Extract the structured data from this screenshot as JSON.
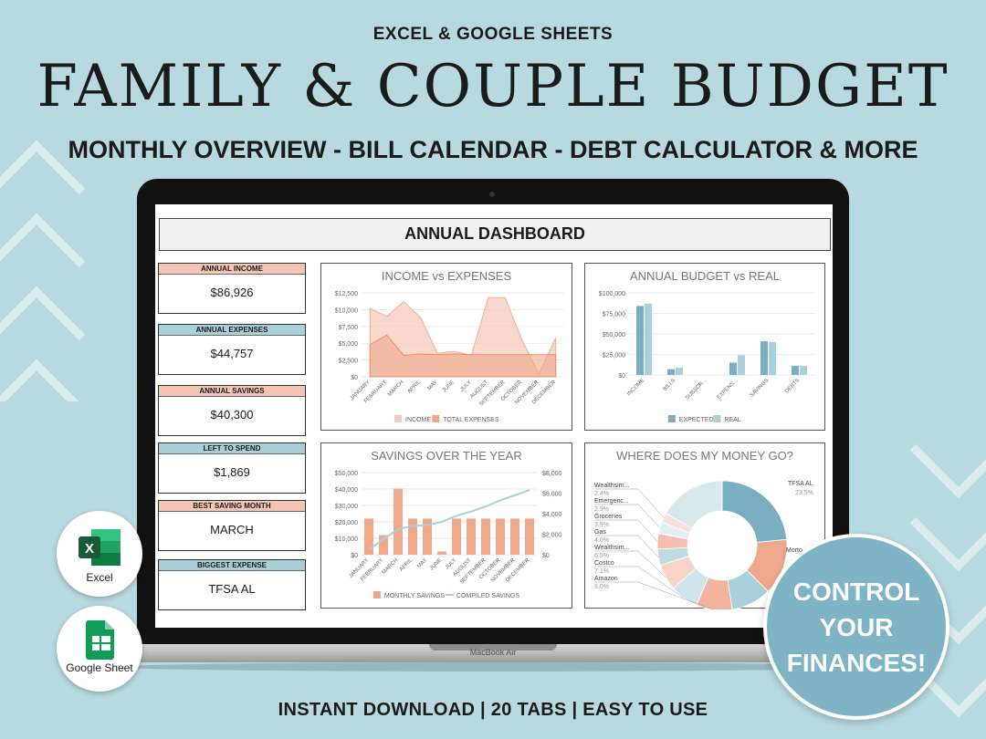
{
  "header": {
    "top_label": "EXCEL & GOOGLE SHEETS",
    "title": "FAMILY & COUPLE BUDGET",
    "subtitle": "MONTHLY OVERVIEW - BILL CALENDAR - DEBT CALCULATOR & MORE"
  },
  "footer": {
    "label": "INSTANT DOWNLOAD  |  20 TABS  |  EASY TO USE"
  },
  "laptop": {
    "brand": "MacBook Air"
  },
  "dashboard": {
    "title": "ANNUAL DASHBOARD",
    "cards": [
      {
        "label": "ANNUAL INCOME",
        "value": "$86,926",
        "color": "#f3c5b4"
      },
      {
        "label": "ANNUAL EXPENSES",
        "value": "$44,757",
        "color": "#a9cfd8"
      },
      {
        "label": "ANNUAL SAVINGS",
        "value": "$40,300",
        "color": "#f3c5b4"
      },
      {
        "label": "LEFT TO SPEND",
        "value": "$1,869",
        "color": "#a9cfd8"
      },
      {
        "label": "BEST SAVING MONTH",
        "value": "MARCH",
        "color": "#f3c5b4"
      },
      {
        "label": "BIGGEST EXPENSE",
        "value": "TFSA AL",
        "color": "#a9cfd8"
      }
    ]
  },
  "badges": {
    "excel": "Excel",
    "google": "Google Sheet"
  },
  "cta": {
    "line1": "CONTROL",
    "line2": "YOUR",
    "line3": "FINANCES!"
  },
  "colors": {
    "salmon": "#efa88c",
    "light_salmon": "#f6cbbb",
    "teal": "#79afbf",
    "light_teal": "#a8d1dc",
    "background": "#b7d9df"
  },
  "chart_data": [
    {
      "type": "area",
      "title": "INCOME vs EXPENSES",
      "categories": [
        "JANUARY",
        "FEBRUARY",
        "MARCH",
        "APRIL",
        "MAY",
        "JUNE",
        "JULY",
        "AUGUST",
        "SEPTEMBER",
        "OCTOBER",
        "NOVEMBER",
        "DECEMBER"
      ],
      "y_ticks": [
        "$0",
        "$2,500",
        "$5,000",
        "$7,500",
        "$10,000",
        "$12,500"
      ],
      "ylim": [
        0,
        12500
      ],
      "series": [
        {
          "name": "INCOME",
          "values": [
            10200,
            9000,
            11200,
            8800,
            3500,
            3800,
            3200,
            11800,
            11800,
            5500,
            500,
            5800
          ]
        },
        {
          "name": "TOTAL EXPENSES",
          "values": [
            4800,
            6200,
            3200,
            3400,
            3300,
            3400,
            3300,
            3300,
            3300,
            3300,
            3300,
            3300
          ]
        }
      ]
    },
    {
      "type": "bar",
      "title": "ANNUAL BUDGET vs REAL",
      "categories": [
        "INCOME",
        "BILLS",
        "SUBSCR...",
        "EXPENS...",
        "SAVINGS",
        "DEBTS"
      ],
      "y_ticks": [
        "$0",
        "$25,000",
        "$50,000",
        "$75,000",
        "$100,000"
      ],
      "ylim": [
        0,
        100000
      ],
      "series": [
        {
          "name": "EXPECTED",
          "values": [
            84000,
            7000,
            0,
            15000,
            41000,
            11000
          ]
        },
        {
          "name": "REAL",
          "values": [
            86926,
            9000,
            0,
            24000,
            40300,
            11000
          ]
        }
      ]
    },
    {
      "type": "bar",
      "title": "SAVINGS OVER THE YEAR",
      "categories": [
        "JANUARY",
        "FEBRUARY",
        "MARCH",
        "APRIL",
        "MAY",
        "JUNE",
        "JULY",
        "AUGUST",
        "SEPTEMBER",
        "OCTOBER",
        "NOVEMBER",
        "DECEMBER"
      ],
      "y_ticks": [
        "$0",
        "$10,000",
        "$20,000",
        "$30,000",
        "$40,000",
        "$50,000"
      ],
      "y2_ticks": [
        "$0",
        "$2,000",
        "$4,000",
        "$6,000",
        "$8,000"
      ],
      "ylim": [
        0,
        50000
      ],
      "y2lim": [
        0,
        8000
      ],
      "series": [
        {
          "name": "MONTHLY SAVINGS",
          "values": [
            22000,
            12000,
            40300,
            22000,
            22000,
            2000,
            22000,
            22000,
            22000,
            22000,
            22000,
            22000
          ]
        },
        {
          "name": "COMPILED SAVINGS",
          "values": [
            500,
            1500,
            2500,
            2800,
            2900,
            3200,
            3800,
            4200,
            4700,
            5300,
            5800,
            6300
          ]
        }
      ]
    },
    {
      "type": "pie",
      "title": "WHERE DOES MY MONEY GO?",
      "slices": [
        {
          "label": "TFSA AL",
          "value": 23.5
        },
        {
          "label": "Morto...",
          "value": 14.0
        },
        {
          "label": "",
          "value": 10.0
        },
        {
          "label": "Amazon",
          "value": 9.0
        },
        {
          "label": "Costco",
          "value": 7.1
        },
        {
          "label": "Wealthsim...",
          "value": 6.5
        },
        {
          "label": "Gas",
          "value": 4.0
        },
        {
          "label": "Groceries",
          "value": 3.9
        },
        {
          "label": "Emergenc...",
          "value": 2.9
        },
        {
          "label": "Wealthsim...",
          "value": 2.4
        },
        {
          "label": "",
          "value": 16.7
        }
      ]
    }
  ]
}
